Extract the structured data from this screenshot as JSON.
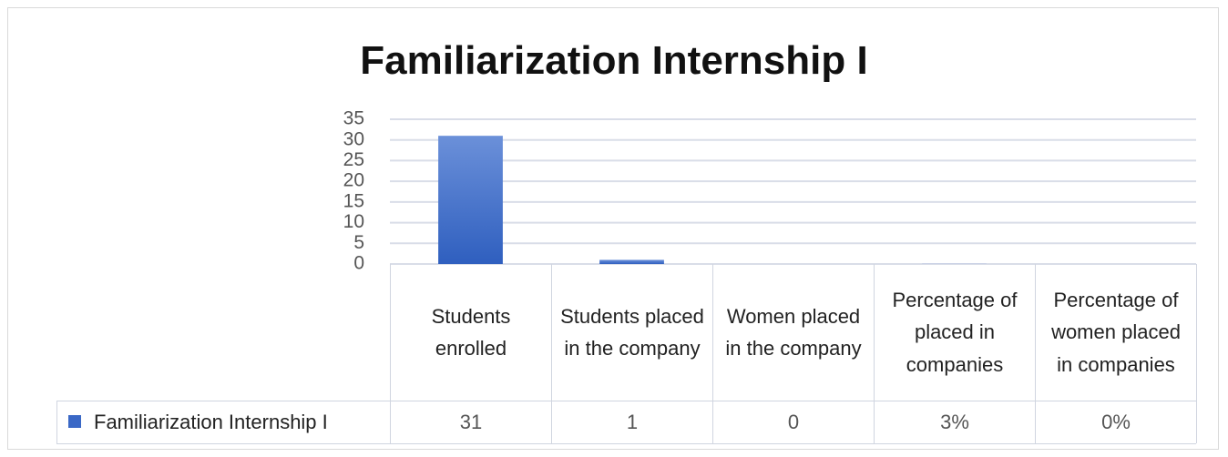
{
  "chart_data": {
    "type": "bar",
    "title": "Familiarization Internship I",
    "categories": [
      "Students enrolled",
      "Students placed in the company",
      "Women placed in the company",
      "Percentage of placed in companies",
      "Percentage of women placed in companies"
    ],
    "series": [
      {
        "name": "Familiarization Internship I",
        "color": "#3a68c6",
        "values": [
          31,
          1,
          0,
          0.03,
          0
        ],
        "value_labels": [
          "31",
          "1",
          "0",
          "3%",
          "0%"
        ]
      }
    ],
    "ylim": [
      0,
      35
    ],
    "yticks": [
      0,
      5,
      10,
      15,
      20,
      25,
      30,
      35
    ],
    "grid": true,
    "data_table": true
  }
}
